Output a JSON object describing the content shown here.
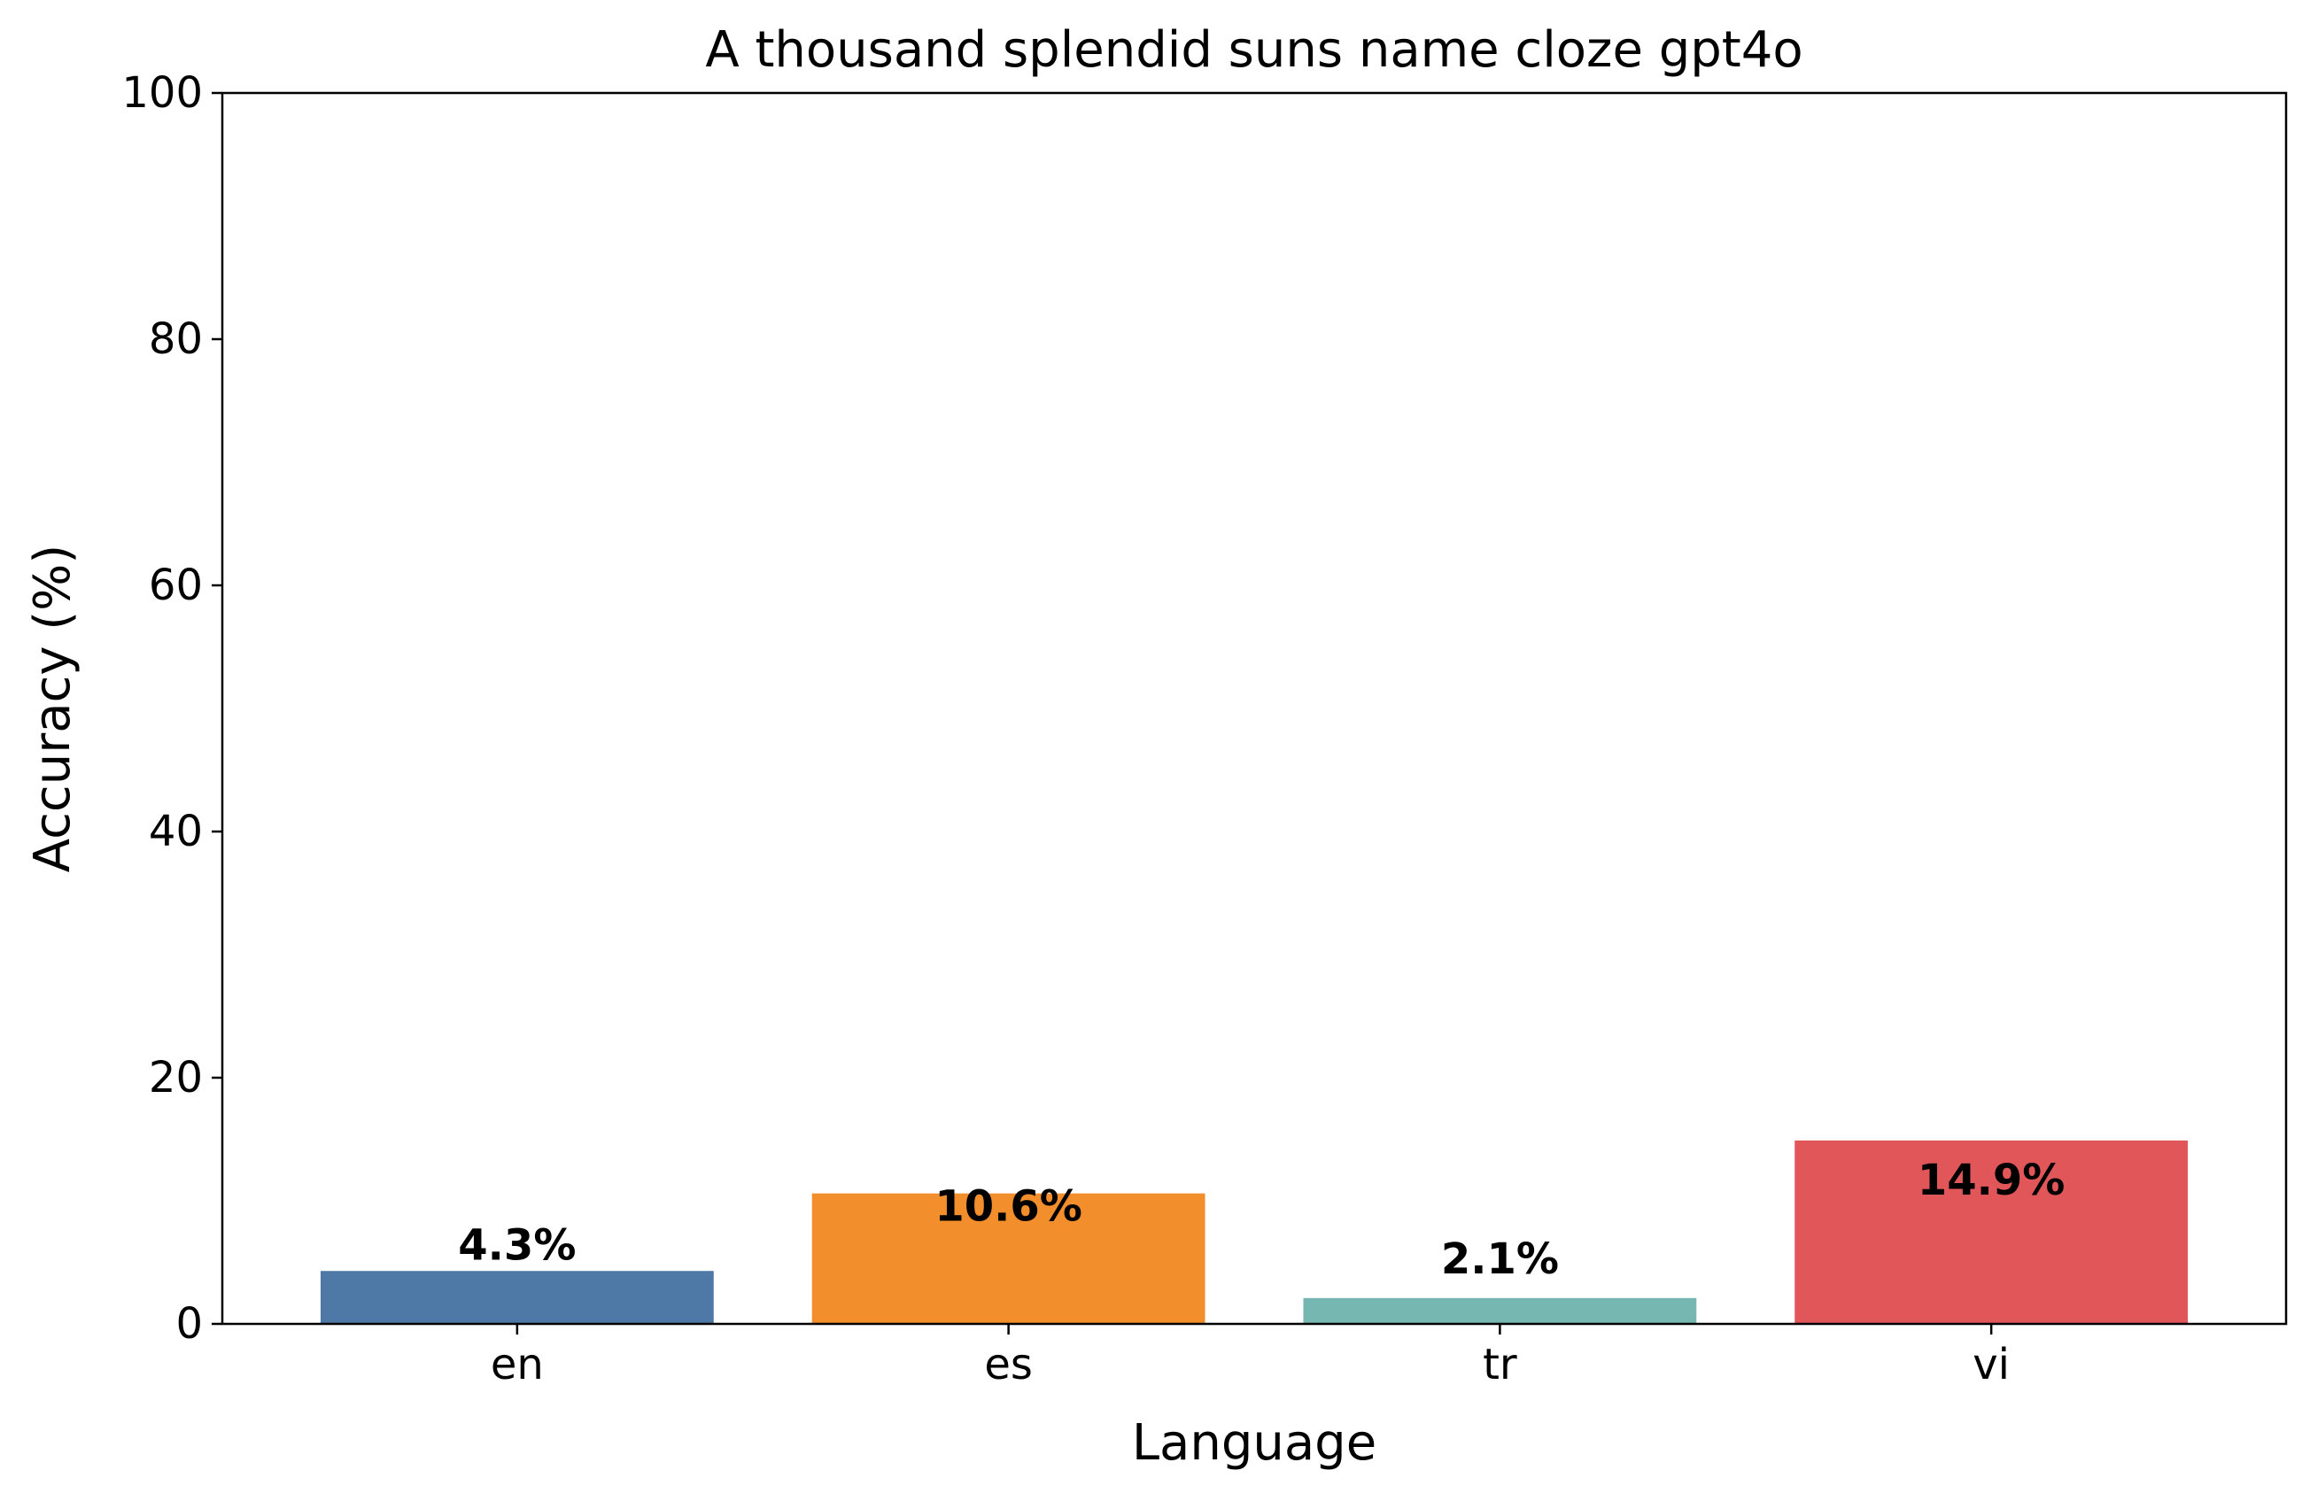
{
  "chart_data": {
    "type": "bar",
    "title": "A thousand splendid suns name cloze gpt4o",
    "xlabel": "Language",
    "ylabel": "Accuracy (%)",
    "categories": [
      "en",
      "es",
      "tr",
      "vi"
    ],
    "values": [
      4.3,
      10.6,
      2.1,
      14.9
    ],
    "value_labels": [
      "4.3%",
      "10.6%",
      "2.1%",
      "14.9%"
    ],
    "colors": [
      "#4e79a7",
      "#f28e2b",
      "#76b7b2",
      "#e15759"
    ],
    "ylim": [
      0,
      100
    ],
    "yticks": [
      0,
      20,
      40,
      60,
      80,
      100
    ],
    "ytick_labels": [
      "0",
      "20",
      "40",
      "60",
      "80",
      "100"
    ],
    "grid": false,
    "legend": "none"
  }
}
